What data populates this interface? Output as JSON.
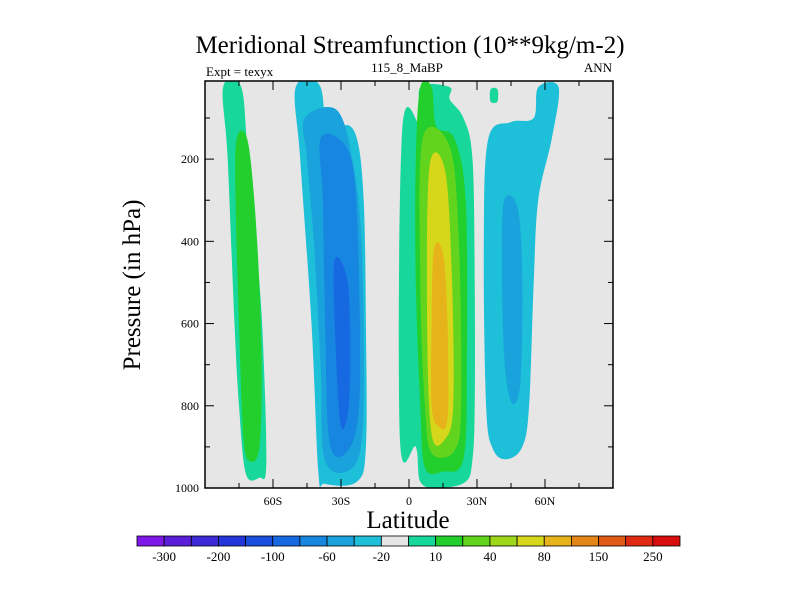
{
  "chart_data": {
    "type": "heatmap",
    "title": "Meridional Streamfunction (10**9kg/m-2)",
    "subtitle_left": "Expt = texyx",
    "subtitle_center": "115_8_MaBP",
    "subtitle_right": "ANN",
    "xlabel": "Latitude",
    "ylabel": "Pressure (in hPa)",
    "x_ticks": [
      {
        "value": -60,
        "label": "60S"
      },
      {
        "value": -30,
        "label": "30S"
      },
      {
        "value": 0,
        "label": "0"
      },
      {
        "value": 30,
        "label": "30N"
      },
      {
        "value": 60,
        "label": "60N"
      }
    ],
    "y_ticks": [
      {
        "value": 200,
        "label": "200"
      },
      {
        "value": 400,
        "label": "400"
      },
      {
        "value": 600,
        "label": "600"
      },
      {
        "value": 800,
        "label": "800"
      },
      {
        "value": 1000,
        "label": "1000"
      }
    ],
    "xlim": [
      -90,
      90
    ],
    "ylim": [
      1000,
      10
    ],
    "background_color": "#e6e6e6",
    "colorbar": {
      "colors": [
        "#7e17e8",
        "#5a1ed8",
        "#3c2ad8",
        "#2535dc",
        "#1a4fe0",
        "#1769e2",
        "#1786e0",
        "#1aa2dc",
        "#1ebfd8",
        "#e6e6e6",
        "#17d79a",
        "#22cf2d",
        "#63d41e",
        "#9ed61a",
        "#d6d61a",
        "#e7b31a",
        "#e48617",
        "#e15a15",
        "#e02a12",
        "#d80d0d"
      ],
      "labels": [
        "-300",
        "-200",
        "-100",
        "-60",
        "-20",
        "10",
        "40",
        "80",
        "150",
        "250"
      ]
    },
    "regions": [
      {
        "name": "sh-high-outer",
        "level": 10,
        "color": "#17d79a",
        "points": [
          [
            -82,
            25
          ],
          [
            -74,
            25
          ],
          [
            -71,
            200
          ],
          [
            -66,
            500
          ],
          [
            -64,
            700
          ],
          [
            -63,
            950
          ],
          [
            -66,
            975
          ],
          [
            -72,
            965
          ],
          [
            -75,
            800
          ],
          [
            -77,
            600
          ],
          [
            -80,
            200
          ]
        ]
      },
      {
        "name": "sh-high-inner",
        "level": 40,
        "color": "#22cf2d",
        "points": [
          [
            -76,
            150
          ],
          [
            -71,
            160
          ],
          [
            -67,
            400
          ],
          [
            -65,
            700
          ],
          [
            -66,
            900
          ],
          [
            -70,
            935
          ],
          [
            -73,
            880
          ],
          [
            -75,
            600
          ],
          [
            -76.5,
            300
          ]
        ]
      },
      {
        "name": "sh-low-outer",
        "level": -20,
        "color": "#1ebfd8",
        "points": [
          [
            -50,
            25
          ],
          [
            -39,
            25
          ],
          [
            -36,
            200
          ],
          [
            -29,
            120
          ],
          [
            -23,
            150
          ],
          [
            -20,
            300
          ],
          [
            -19,
            600
          ],
          [
            -19,
            900
          ],
          [
            -23,
            985
          ],
          [
            -37,
            990
          ],
          [
            -40,
            960
          ],
          [
            -43,
            600
          ],
          [
            -48,
            200
          ]
        ]
      },
      {
        "name": "sh-low-mid",
        "level": -60,
        "color": "#1aa2dc",
        "points": [
          [
            -46,
            100
          ],
          [
            -32,
            80
          ],
          [
            -25,
            200
          ],
          [
            -21,
            400
          ],
          [
            -20,
            800
          ],
          [
            -24,
            945
          ],
          [
            -37,
            935
          ],
          [
            -39,
            700
          ],
          [
            -42,
            400
          ],
          [
            -45,
            200
          ]
        ]
      },
      {
        "name": "sh-low-inner",
        "level": -100,
        "color": "#1786e0",
        "points": [
          [
            -39,
            150
          ],
          [
            -29,
            160
          ],
          [
            -24,
            250
          ],
          [
            -22,
            500
          ],
          [
            -22,
            800
          ],
          [
            -27,
            910
          ],
          [
            -35,
            890
          ],
          [
            -37,
            600
          ],
          [
            -38,
            300
          ]
        ]
      },
      {
        "name": "sh-low-core",
        "level": -200,
        "color": "#1769e2",
        "points": [
          [
            -33,
            450
          ],
          [
            -27,
            500
          ],
          [
            -26,
            700
          ],
          [
            -27,
            820
          ],
          [
            -30,
            850
          ],
          [
            -32,
            700
          ]
        ]
      },
      {
        "name": "nh-high-outer",
        "level": 10,
        "color": "#17d79a",
        "points": [
          [
            5,
            25
          ],
          [
            18,
            25
          ],
          [
            18,
            55
          ],
          [
            24,
            100
          ],
          [
            28,
            200
          ],
          [
            29,
            500
          ],
          [
            29,
            800
          ],
          [
            28,
            930
          ],
          [
            25,
            985
          ],
          [
            13,
            1000
          ],
          [
            5,
            985
          ],
          [
            3,
            900
          ],
          [
            -4,
            880
          ],
          [
            -3,
            130
          ],
          [
            5,
            115
          ]
        ]
      },
      {
        "name": "nh-high-40",
        "level": 40,
        "color": "#22cf2d",
        "points": [
          [
            5,
            25
          ],
          [
            10,
            25
          ],
          [
            12,
            120
          ],
          [
            20,
            150
          ],
          [
            25,
            300
          ],
          [
            25.5,
            700
          ],
          [
            24,
            930
          ],
          [
            15,
            960
          ],
          [
            7,
            950
          ],
          [
            5,
            800
          ],
          [
            3,
            500
          ],
          [
            3,
            200
          ]
        ]
      },
      {
        "name": "nh-high-80",
        "level": 80,
        "color": "#63d41e",
        "points": [
          [
            6,
            150
          ],
          [
            18,
            170
          ],
          [
            22,
            400
          ],
          [
            23,
            800
          ],
          [
            20,
            910
          ],
          [
            10,
            915
          ],
          [
            7,
            800
          ],
          [
            5,
            500
          ]
        ]
      },
      {
        "name": "nh-high-150",
        "level": 150,
        "color": "#d6d61a",
        "points": [
          [
            9,
            220
          ],
          [
            16,
            230
          ],
          [
            19,
            500
          ],
          [
            19.5,
            800
          ],
          [
            16,
            880
          ],
          [
            10,
            870
          ],
          [
            8,
            600
          ]
        ]
      },
      {
        "name": "nh-high-250",
        "level": 250,
        "color": "#e7b31a",
        "points": [
          [
            11,
            420
          ],
          [
            15,
            430
          ],
          [
            17,
            600
          ],
          [
            17,
            830
          ],
          [
            13,
            850
          ],
          [
            10,
            800
          ],
          [
            10,
            600
          ]
        ]
      },
      {
        "name": "nh-high-100-dot",
        "level": 10,
        "color": "#17d79a",
        "points": [
          [
            36,
            30
          ],
          [
            39,
            30
          ],
          [
            39,
            60
          ],
          [
            36,
            60
          ]
        ]
      },
      {
        "name": "nh-low-outer",
        "level": -20,
        "color": "#1ebfd8",
        "points": [
          [
            57,
            25
          ],
          [
            66,
            25
          ],
          [
            63,
            150
          ],
          [
            57,
            300
          ],
          [
            55,
            500
          ],
          [
            53,
            800
          ],
          [
            50,
            900
          ],
          [
            43,
            930
          ],
          [
            37,
            905
          ],
          [
            34,
            800
          ],
          [
            33,
            400
          ],
          [
            35,
            150
          ],
          [
            45,
            110
          ],
          [
            55,
            100
          ]
        ]
      },
      {
        "name": "nh-low-inner",
        "level": -60,
        "color": "#1aa2dc",
        "points": [
          [
            42,
            300
          ],
          [
            48,
            320
          ],
          [
            50,
            500
          ],
          [
            49,
            750
          ],
          [
            45,
            790
          ],
          [
            42,
            680
          ],
          [
            41,
            450
          ]
        ]
      }
    ]
  }
}
